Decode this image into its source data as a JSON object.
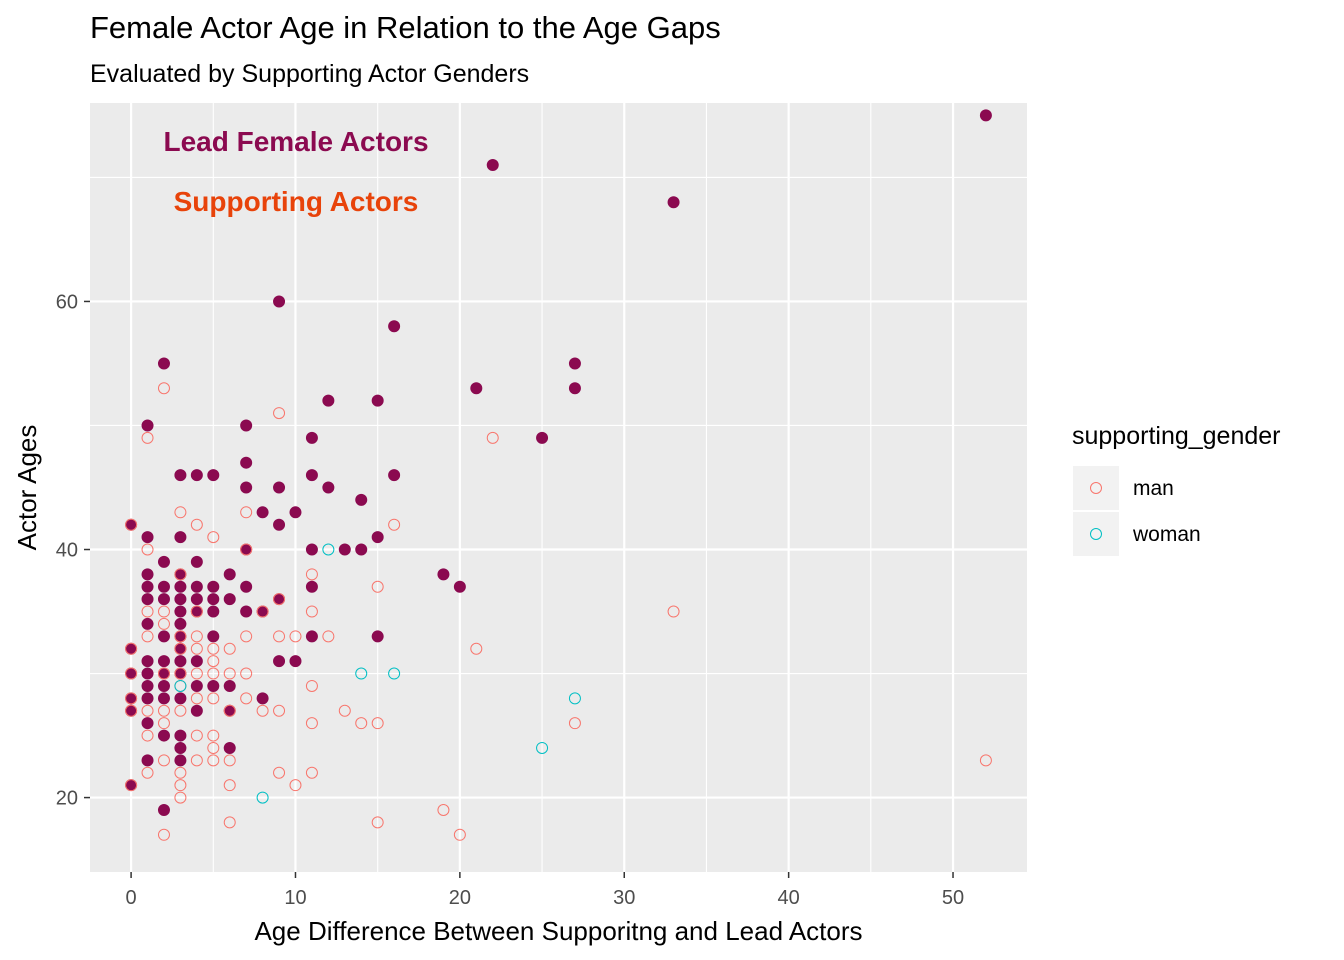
{
  "title": "Female Actor Age in Relation to the Age Gaps",
  "subtitle": "Evaluated by Supporting Actor Genders",
  "annotations": {
    "lead": "Lead Female Actors",
    "supporting": "Supporting Actors"
  },
  "colors": {
    "lead": "#8b0a50",
    "supporting_annotation": "#e8430a",
    "man": "#f8766d",
    "woman": "#00bfc4",
    "panel": "#ebebeb",
    "grid": "#ffffff"
  },
  "legend": {
    "title": "supporting_gender",
    "items": [
      {
        "label": "man",
        "color": "#f8766d"
      },
      {
        "label": "woman",
        "color": "#00bfc4"
      }
    ]
  },
  "chart_data": {
    "type": "scatter",
    "title": "Female Actor Age in Relation to the Age Gaps",
    "subtitle": "Evaluated by Supporting Actor Genders",
    "xlabel": "Age Difference Between Supporitng and Lead Actors",
    "ylabel": "Actor Ages",
    "xlim": [
      -2.5,
      54.5
    ],
    "ylim": [
      14,
      76
    ],
    "x_ticks": [
      0,
      10,
      20,
      30,
      40,
      50
    ],
    "y_ticks": [
      20,
      40,
      60
    ],
    "grid": true,
    "legend_position": "right",
    "series": [
      {
        "name": "Lead Female Actors",
        "marker": "filled circle",
        "points": [
          [
            0,
            42
          ],
          [
            0,
            32
          ],
          [
            0,
            30
          ],
          [
            0,
            28
          ],
          [
            0,
            27
          ],
          [
            0,
            21
          ],
          [
            1,
            50
          ],
          [
            1,
            41
          ],
          [
            1,
            38
          ],
          [
            1,
            37
          ],
          [
            1,
            36
          ],
          [
            1,
            34
          ],
          [
            1,
            31
          ],
          [
            1,
            30
          ],
          [
            1,
            29
          ],
          [
            1,
            28
          ],
          [
            1,
            26
          ],
          [
            1,
            23
          ],
          [
            2,
            55
          ],
          [
            2,
            39
          ],
          [
            2,
            37
          ],
          [
            2,
            36
          ],
          [
            2,
            33
          ],
          [
            2,
            31
          ],
          [
            2,
            30
          ],
          [
            2,
            29
          ],
          [
            2,
            28
          ],
          [
            2,
            25
          ],
          [
            2,
            19
          ],
          [
            3,
            46
          ],
          [
            3,
            41
          ],
          [
            3,
            38
          ],
          [
            3,
            37
          ],
          [
            3,
            36
          ],
          [
            3,
            35
          ],
          [
            3,
            34
          ],
          [
            3,
            33
          ],
          [
            3,
            32
          ],
          [
            3,
            31
          ],
          [
            3,
            30
          ],
          [
            3,
            28
          ],
          [
            3,
            25
          ],
          [
            3,
            24
          ],
          [
            3,
            23
          ],
          [
            4,
            46
          ],
          [
            4,
            39
          ],
          [
            4,
            37
          ],
          [
            4,
            36
          ],
          [
            4,
            35
          ],
          [
            4,
            31
          ],
          [
            4,
            29
          ],
          [
            4,
            27
          ],
          [
            5,
            46
          ],
          [
            5,
            37
          ],
          [
            5,
            36
          ],
          [
            5,
            35
          ],
          [
            5,
            33
          ],
          [
            5,
            29
          ],
          [
            6,
            38
          ],
          [
            6,
            36
          ],
          [
            6,
            29
          ],
          [
            6,
            27
          ],
          [
            6,
            24
          ],
          [
            7,
            50
          ],
          [
            7,
            47
          ],
          [
            7,
            45
          ],
          [
            7,
            40
          ],
          [
            7,
            37
          ],
          [
            7,
            35
          ],
          [
            8,
            43
          ],
          [
            8,
            35
          ],
          [
            8,
            28
          ],
          [
            9,
            60
          ],
          [
            9,
            45
          ],
          [
            9,
            42
          ],
          [
            9,
            36
          ],
          [
            9,
            31
          ],
          [
            10,
            43
          ],
          [
            10,
            31
          ],
          [
            11,
            49
          ],
          [
            11,
            46
          ],
          [
            11,
            40
          ],
          [
            11,
            37
          ],
          [
            11,
            33
          ],
          [
            12,
            52
          ],
          [
            12,
            45
          ],
          [
            13,
            40
          ],
          [
            14,
            44
          ],
          [
            14,
            40
          ],
          [
            15,
            52
          ],
          [
            15,
            41
          ],
          [
            15,
            33
          ],
          [
            16,
            58
          ],
          [
            16,
            46
          ],
          [
            19,
            38
          ],
          [
            20,
            37
          ],
          [
            21,
            53
          ],
          [
            22,
            71
          ],
          [
            25,
            49
          ],
          [
            27,
            55
          ],
          [
            27,
            53
          ],
          [
            33,
            68
          ],
          [
            52,
            75
          ]
        ]
      },
      {
        "name": "man",
        "marker": "open circle",
        "points": [
          [
            0,
            42
          ],
          [
            0,
            32
          ],
          [
            0,
            30
          ],
          [
            0,
            28
          ],
          [
            0,
            27
          ],
          [
            0,
            21
          ],
          [
            1,
            49
          ],
          [
            1,
            40
          ],
          [
            1,
            35
          ],
          [
            1,
            33
          ],
          [
            1,
            27
          ],
          [
            1,
            25
          ],
          [
            1,
            22
          ],
          [
            2,
            53
          ],
          [
            2,
            35
          ],
          [
            2,
            34
          ],
          [
            2,
            30
          ],
          [
            2,
            27
          ],
          [
            2,
            26
          ],
          [
            2,
            23
          ],
          [
            2,
            17
          ],
          [
            3,
            43
          ],
          [
            3,
            38
          ],
          [
            3,
            33
          ],
          [
            3,
            32
          ],
          [
            3,
            30
          ],
          [
            3,
            29
          ],
          [
            3,
            27
          ],
          [
            3,
            22
          ],
          [
            3,
            21
          ],
          [
            3,
            20
          ],
          [
            4,
            42
          ],
          [
            4,
            35
          ],
          [
            4,
            33
          ],
          [
            4,
            32
          ],
          [
            4,
            30
          ],
          [
            4,
            28
          ],
          [
            4,
            25
          ],
          [
            4,
            23
          ],
          [
            5,
            41
          ],
          [
            5,
            32
          ],
          [
            5,
            31
          ],
          [
            5,
            30
          ],
          [
            5,
            28
          ],
          [
            5,
            25
          ],
          [
            5,
            24
          ],
          [
            5,
            23
          ],
          [
            6,
            32
          ],
          [
            6,
            30
          ],
          [
            6,
            27
          ],
          [
            6,
            23
          ],
          [
            6,
            21
          ],
          [
            6,
            18
          ],
          [
            7,
            43
          ],
          [
            7,
            40
          ],
          [
            7,
            33
          ],
          [
            7,
            30
          ],
          [
            7,
            28
          ],
          [
            8,
            35
          ],
          [
            8,
            27
          ],
          [
            9,
            51
          ],
          [
            9,
            36
          ],
          [
            9,
            33
          ],
          [
            9,
            27
          ],
          [
            9,
            22
          ],
          [
            10,
            33
          ],
          [
            10,
            21
          ],
          [
            11,
            38
          ],
          [
            11,
            35
          ],
          [
            11,
            29
          ],
          [
            11,
            26
          ],
          [
            11,
            22
          ],
          [
            12,
            33
          ],
          [
            13,
            27
          ],
          [
            14,
            26
          ],
          [
            15,
            37
          ],
          [
            15,
            26
          ],
          [
            15,
            18
          ],
          [
            16,
            42
          ],
          [
            19,
            19
          ],
          [
            20,
            17
          ],
          [
            21,
            32
          ],
          [
            22,
            49
          ],
          [
            27,
            26
          ],
          [
            33,
            35
          ],
          [
            52,
            23
          ]
        ]
      },
      {
        "name": "woman",
        "marker": "open circle",
        "points": [
          [
            3,
            29
          ],
          [
            8,
            20
          ],
          [
            12,
            40
          ],
          [
            14,
            30
          ],
          [
            16,
            30
          ],
          [
            25,
            24
          ],
          [
            27,
            28
          ]
        ]
      }
    ]
  }
}
